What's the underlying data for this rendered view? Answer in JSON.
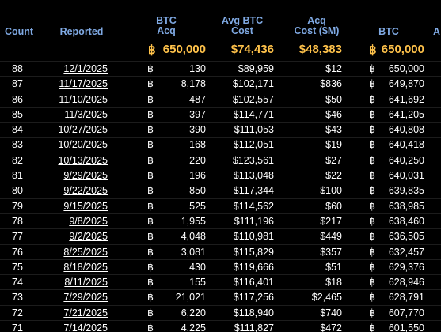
{
  "headers": {
    "count": "Count",
    "reported": "Reported",
    "btc_acq": [
      "BTC",
      "Acq"
    ],
    "avg_btc_cost": [
      "Avg BTC",
      "Cost"
    ],
    "acq_cost_m": [
      "Acq",
      "Cost ($M)"
    ],
    "btc": "BTC",
    "cut": "A"
  },
  "totals": {
    "btc_symbol": "฿",
    "btc_acq": "650,000",
    "avg_btc_cost": "$74,436",
    "acq_cost_m": "$48,383",
    "btc": "650,000"
  },
  "rows": [
    {
      "count": "88",
      "reported": "12/1/2025",
      "btc_acq": "130",
      "avg_btc_cost": "$89,959",
      "acq_cost_m": "$12",
      "btc": "650,000"
    },
    {
      "count": "87",
      "reported": "11/17/2025",
      "btc_acq": "8,178",
      "avg_btc_cost": "$102,171",
      "acq_cost_m": "$836",
      "btc": "649,870"
    },
    {
      "count": "86",
      "reported": "11/10/2025",
      "btc_acq": "487",
      "avg_btc_cost": "$102,557",
      "acq_cost_m": "$50",
      "btc": "641,692"
    },
    {
      "count": "85",
      "reported": "11/3/2025",
      "btc_acq": "397",
      "avg_btc_cost": "$114,771",
      "acq_cost_m": "$46",
      "btc": "641,205"
    },
    {
      "count": "84",
      "reported": "10/27/2025",
      "btc_acq": "390",
      "avg_btc_cost": "$111,053",
      "acq_cost_m": "$43",
      "btc": "640,808"
    },
    {
      "count": "83",
      "reported": "10/20/2025",
      "btc_acq": "168",
      "avg_btc_cost": "$112,051",
      "acq_cost_m": "$19",
      "btc": "640,418"
    },
    {
      "count": "82",
      "reported": "10/13/2025",
      "btc_acq": "220",
      "avg_btc_cost": "$123,561",
      "acq_cost_m": "$27",
      "btc": "640,250"
    },
    {
      "count": "81",
      "reported": "9/29/2025",
      "btc_acq": "196",
      "avg_btc_cost": "$113,048",
      "acq_cost_m": "$22",
      "btc": "640,031"
    },
    {
      "count": "80",
      "reported": "9/22/2025",
      "btc_acq": "850",
      "avg_btc_cost": "$117,344",
      "acq_cost_m": "$100",
      "btc": "639,835"
    },
    {
      "count": "79",
      "reported": "9/15/2025",
      "btc_acq": "525",
      "avg_btc_cost": "$114,562",
      "acq_cost_m": "$60",
      "btc": "638,985"
    },
    {
      "count": "78",
      "reported": "9/8/2025",
      "btc_acq": "1,955",
      "avg_btc_cost": "$111,196",
      "acq_cost_m": "$217",
      "btc": "638,460"
    },
    {
      "count": "77",
      "reported": "9/2/2025",
      "btc_acq": "4,048",
      "avg_btc_cost": "$110,981",
      "acq_cost_m": "$449",
      "btc": "636,505"
    },
    {
      "count": "76",
      "reported": "8/25/2025",
      "btc_acq": "3,081",
      "avg_btc_cost": "$115,829",
      "acq_cost_m": "$357",
      "btc": "632,457"
    },
    {
      "count": "75",
      "reported": "8/18/2025",
      "btc_acq": "430",
      "avg_btc_cost": "$119,666",
      "acq_cost_m": "$51",
      "btc": "629,376"
    },
    {
      "count": "74",
      "reported": "8/11/2025",
      "btc_acq": "155",
      "avg_btc_cost": "$116,401",
      "acq_cost_m": "$18",
      "btc": "628,946"
    },
    {
      "count": "73",
      "reported": "7/29/2025",
      "btc_acq": "21,021",
      "avg_btc_cost": "$117,256",
      "acq_cost_m": "$2,465",
      "btc": "628,791"
    },
    {
      "count": "72",
      "reported": "7/21/2025",
      "btc_acq": "6,220",
      "avg_btc_cost": "$118,940",
      "acq_cost_m": "$740",
      "btc": "607,770"
    },
    {
      "count": "71",
      "reported": "7/14/2025",
      "btc_acq": "4,225",
      "avg_btc_cost": "$111,827",
      "acq_cost_m": "$472",
      "btc": "601,550"
    }
  ],
  "colors": {
    "background": "#000000",
    "header_text": "#7fa9e3",
    "totals_text": "#ffc24a",
    "body_text": "#ffffff"
  }
}
